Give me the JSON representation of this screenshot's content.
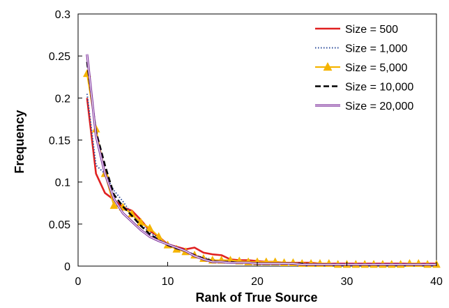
{
  "chart_data": {
    "type": "line",
    "xlabel": "Rank of True Source",
    "ylabel": "Frequency",
    "xlim": [
      0,
      40
    ],
    "ylim": [
      0,
      0.3
    ],
    "x_ticks": [
      "0",
      "10",
      "20",
      "30",
      "40"
    ],
    "y_ticks": [
      "0",
      "0.05",
      "0.1",
      "0.15",
      "0.2",
      "0.25",
      "0.3"
    ],
    "grid": false,
    "legend_position": "top-right",
    "x": [
      1,
      2,
      3,
      4,
      5,
      6,
      7,
      8,
      9,
      10,
      11,
      12,
      13,
      14,
      15,
      16,
      17,
      18,
      19,
      20,
      21,
      22,
      23,
      24,
      25,
      26,
      27,
      28,
      29,
      30,
      31,
      32,
      33,
      34,
      35,
      36,
      37,
      38,
      39,
      40
    ],
    "series": [
      {
        "name": "Size = 500",
        "color": "#e02020",
        "style": "solid",
        "values": [
          0.2,
          0.11,
          0.087,
          0.079,
          0.07,
          0.066,
          0.055,
          0.042,
          0.035,
          0.026,
          0.023,
          0.02,
          0.022,
          0.016,
          0.014,
          0.013,
          0.008,
          0.007,
          0.007,
          0.006,
          0.005,
          0.005,
          0.004,
          0.004,
          0.004,
          0.004,
          0.003,
          0.003,
          0.003,
          0.003,
          0.003,
          0.003,
          0.003,
          0.003,
          0.003,
          0.003,
          0.003,
          0.003,
          0.003,
          0.003
        ]
      },
      {
        "name": "Size = 1,000",
        "color": "#2a4a9a",
        "style": "dotted",
        "values": [
          0.205,
          0.12,
          0.11,
          0.09,
          0.077,
          0.062,
          0.05,
          0.04,
          0.033,
          0.026,
          0.022,
          0.018,
          0.013,
          0.01,
          0.008,
          0.006,
          0.005,
          0.005,
          0.004,
          0.004,
          0.003,
          0.003,
          0.003,
          0.003,
          0.003,
          0.003,
          0.002,
          0.002,
          0.002,
          0.002,
          0.002,
          0.002,
          0.002,
          0.002,
          0.002,
          0.002,
          0.002,
          0.002,
          0.002,
          0.002
        ]
      },
      {
        "name": "Size = 5,000",
        "color": "#f5b400",
        "style": "triangle",
        "values": [
          0.229,
          0.163,
          0.11,
          0.072,
          0.07,
          0.062,
          0.052,
          0.045,
          0.035,
          0.025,
          0.02,
          0.017,
          0.013,
          0.009,
          0.007,
          0.007,
          0.007,
          0.006,
          0.005,
          0.005,
          0.005,
          0.005,
          0.004,
          0.004,
          0.003,
          0.003,
          0.003,
          0.003,
          0.002,
          0.002,
          0.002,
          0.002,
          0.002,
          0.002,
          0.002,
          0.002,
          0.003,
          0.003,
          0.002,
          0.002
        ]
      },
      {
        "name": "Size = 10,000",
        "color": "#000000",
        "style": "dashed",
        "values": [
          0.243,
          0.16,
          0.12,
          0.085,
          0.071,
          0.06,
          0.048,
          0.038,
          0.031,
          0.025,
          0.021,
          0.018,
          0.013,
          0.009,
          0.006,
          0.005,
          0.005,
          0.004,
          0.004,
          0.003,
          0.003,
          0.003,
          0.003,
          0.003,
          0.003,
          0.002,
          0.002,
          0.002,
          0.002,
          0.002,
          0.002,
          0.002,
          0.002,
          0.002,
          0.002,
          0.002,
          0.002,
          0.002,
          0.002,
          0.002
        ]
      },
      {
        "name": "Size = 20,000",
        "color": "#7a2a9a",
        "style": "double",
        "values": [
          0.252,
          0.155,
          0.11,
          0.08,
          0.063,
          0.053,
          0.043,
          0.035,
          0.03,
          0.026,
          0.022,
          0.018,
          0.012,
          0.008,
          0.005,
          0.005,
          0.004,
          0.004,
          0.004,
          0.003,
          0.003,
          0.003,
          0.003,
          0.003,
          0.002,
          0.002,
          0.002,
          0.002,
          0.002,
          0.002,
          0.002,
          0.002,
          0.002,
          0.002,
          0.002,
          0.002,
          0.002,
          0.002,
          0.002,
          0.002
        ]
      }
    ]
  }
}
